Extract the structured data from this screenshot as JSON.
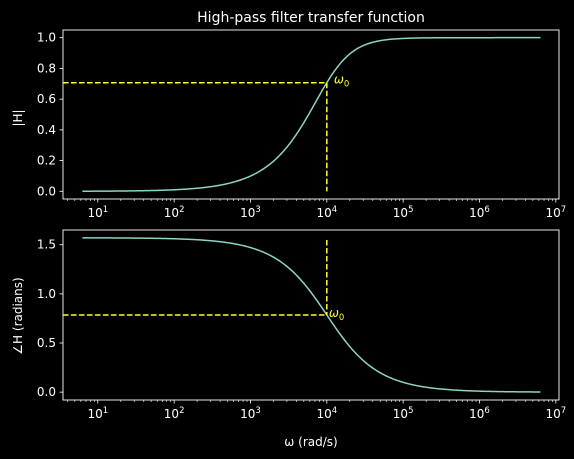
{
  "colors": {
    "background": "#000000",
    "foreground": "#ffffff",
    "curve": "#8dd3c7",
    "marker": "#ffff33"
  },
  "chart_data": [
    {
      "type": "line",
      "title": "High-pass filter transfer function",
      "xlabel": "",
      "ylabel": "|H|",
      "xscale": "log",
      "xlim": [
        3.5,
        11000000
      ],
      "ylim": [
        -0.05,
        1.05
      ],
      "x_ticks": [
        10,
        100,
        1000,
        10000,
        100000,
        1000000,
        10000000
      ],
      "x_tick_labels": [
        {
          "base": "10",
          "exp": "1"
        },
        {
          "base": "10",
          "exp": "2"
        },
        {
          "base": "10",
          "exp": "3"
        },
        {
          "base": "10",
          "exp": "4"
        },
        {
          "base": "10",
          "exp": "5"
        },
        {
          "base": "10",
          "exp": "6"
        },
        {
          "base": "10",
          "exp": "7"
        }
      ],
      "y_ticks": [
        0.0,
        0.2,
        0.4,
        0.6,
        0.8,
        1.0
      ],
      "y_tick_labels": [
        "0.0",
        "0.2",
        "0.4",
        "0.6",
        "0.8",
        "1.0"
      ],
      "cutoff_frequency": 10000,
      "curve": "magnitude",
      "x_range": [
        6.28,
        6280000
      ],
      "marker_value": 0.707,
      "annotation": {
        "base": "ω",
        "sub": "0"
      },
      "grid": false
    },
    {
      "type": "line",
      "title": "",
      "xlabel": "ω (rad/s)",
      "ylabel": "∠H (radians)",
      "xscale": "log",
      "xlim": [
        3.5,
        11000000
      ],
      "ylim": [
        -0.08,
        1.65
      ],
      "x_ticks": [
        10,
        100,
        1000,
        10000,
        100000,
        1000000,
        10000000
      ],
      "x_tick_labels": [
        {
          "base": "10",
          "exp": "1"
        },
        {
          "base": "10",
          "exp": "2"
        },
        {
          "base": "10",
          "exp": "3"
        },
        {
          "base": "10",
          "exp": "4"
        },
        {
          "base": "10",
          "exp": "5"
        },
        {
          "base": "10",
          "exp": "6"
        },
        {
          "base": "10",
          "exp": "7"
        }
      ],
      "y_ticks": [
        0.0,
        0.5,
        1.0,
        1.5
      ],
      "y_tick_labels": [
        "0.0",
        "0.5",
        "1.0",
        "1.5"
      ],
      "cutoff_frequency": 10000,
      "curve": "phase",
      "x_range": [
        6.28,
        6280000
      ],
      "marker_value": 0.785,
      "annotation": {
        "base": "ω",
        "sub": "0"
      },
      "grid": false
    }
  ]
}
